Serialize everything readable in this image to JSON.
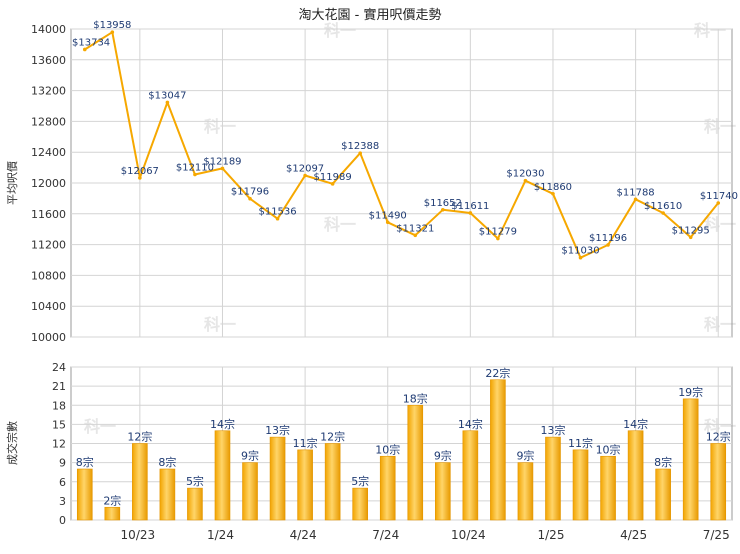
{
  "chart_data": [
    {
      "type": "line",
      "title": "淘大花園 - 實用呎價走勢",
      "ylabel": "平均呎價",
      "ylim": [
        10000,
        14000
      ],
      "yticks": [
        10000,
        10400,
        10800,
        11200,
        11600,
        12000,
        12400,
        12800,
        13200,
        13600,
        14000
      ],
      "grid": true,
      "color": "#f6a800",
      "values": [
        13734,
        13958,
        12067,
        13047,
        12110,
        12189,
        11796,
        11536,
        12097,
        11989,
        12388,
        11490,
        11321,
        11652,
        11611,
        11279,
        12030,
        11860,
        11030,
        11196,
        11788,
        11610,
        11295,
        11740
      ],
      "data_labels": [
        "$13734",
        "$13958",
        "$12067",
        "$13047",
        "$12110",
        "$12189",
        "$11796",
        "$11536",
        "$12097",
        "$11989",
        "$12388",
        "$11490",
        "$11321",
        "$11652",
        "$11611",
        "$11279",
        "$12030",
        "$11860",
        "$11030",
        "$11196",
        "$11788",
        "$11610",
        "$11295",
        "$11740"
      ]
    },
    {
      "type": "bar",
      "ylabel": "成交宗數",
      "ylim": [
        0,
        24
      ],
      "yticks": [
        0,
        3,
        6,
        9,
        12,
        15,
        18,
        21,
        24
      ],
      "grid": true,
      "color": "#f6a800",
      "values": [
        8,
        2,
        12,
        8,
        5,
        14,
        9,
        13,
        11,
        12,
        5,
        10,
        18,
        9,
        14,
        22,
        9,
        13,
        11,
        10,
        14,
        8,
        19,
        12
      ],
      "data_labels": [
        "8宗",
        "2宗",
        "12宗",
        "8宗",
        "5宗",
        "14宗",
        "9宗",
        "13宗",
        "11宗",
        "12宗",
        "5宗",
        "10宗",
        "18宗",
        "9宗",
        "14宗",
        "22宗",
        "9宗",
        "13宗",
        "11宗",
        "10宗",
        "14宗",
        "8宗",
        "19宗",
        "12宗"
      ],
      "x_ticks": [
        {
          "index": 2,
          "label": "10/23"
        },
        {
          "index": 5,
          "label": "1/24"
        },
        {
          "index": 8,
          "label": "4/24"
        },
        {
          "index": 11,
          "label": "7/24"
        },
        {
          "index": 14,
          "label": "10/24"
        },
        {
          "index": 17,
          "label": "1/25"
        },
        {
          "index": 20,
          "label": "4/25"
        },
        {
          "index": 23,
          "label": "7/25"
        }
      ]
    }
  ],
  "watermark": "科一",
  "colors": {
    "grid": "#d4d4d4",
    "axis": "#9a9a9a",
    "text": "#333333",
    "label": "#1f3b73",
    "watermark": "#e6e6e6"
  }
}
